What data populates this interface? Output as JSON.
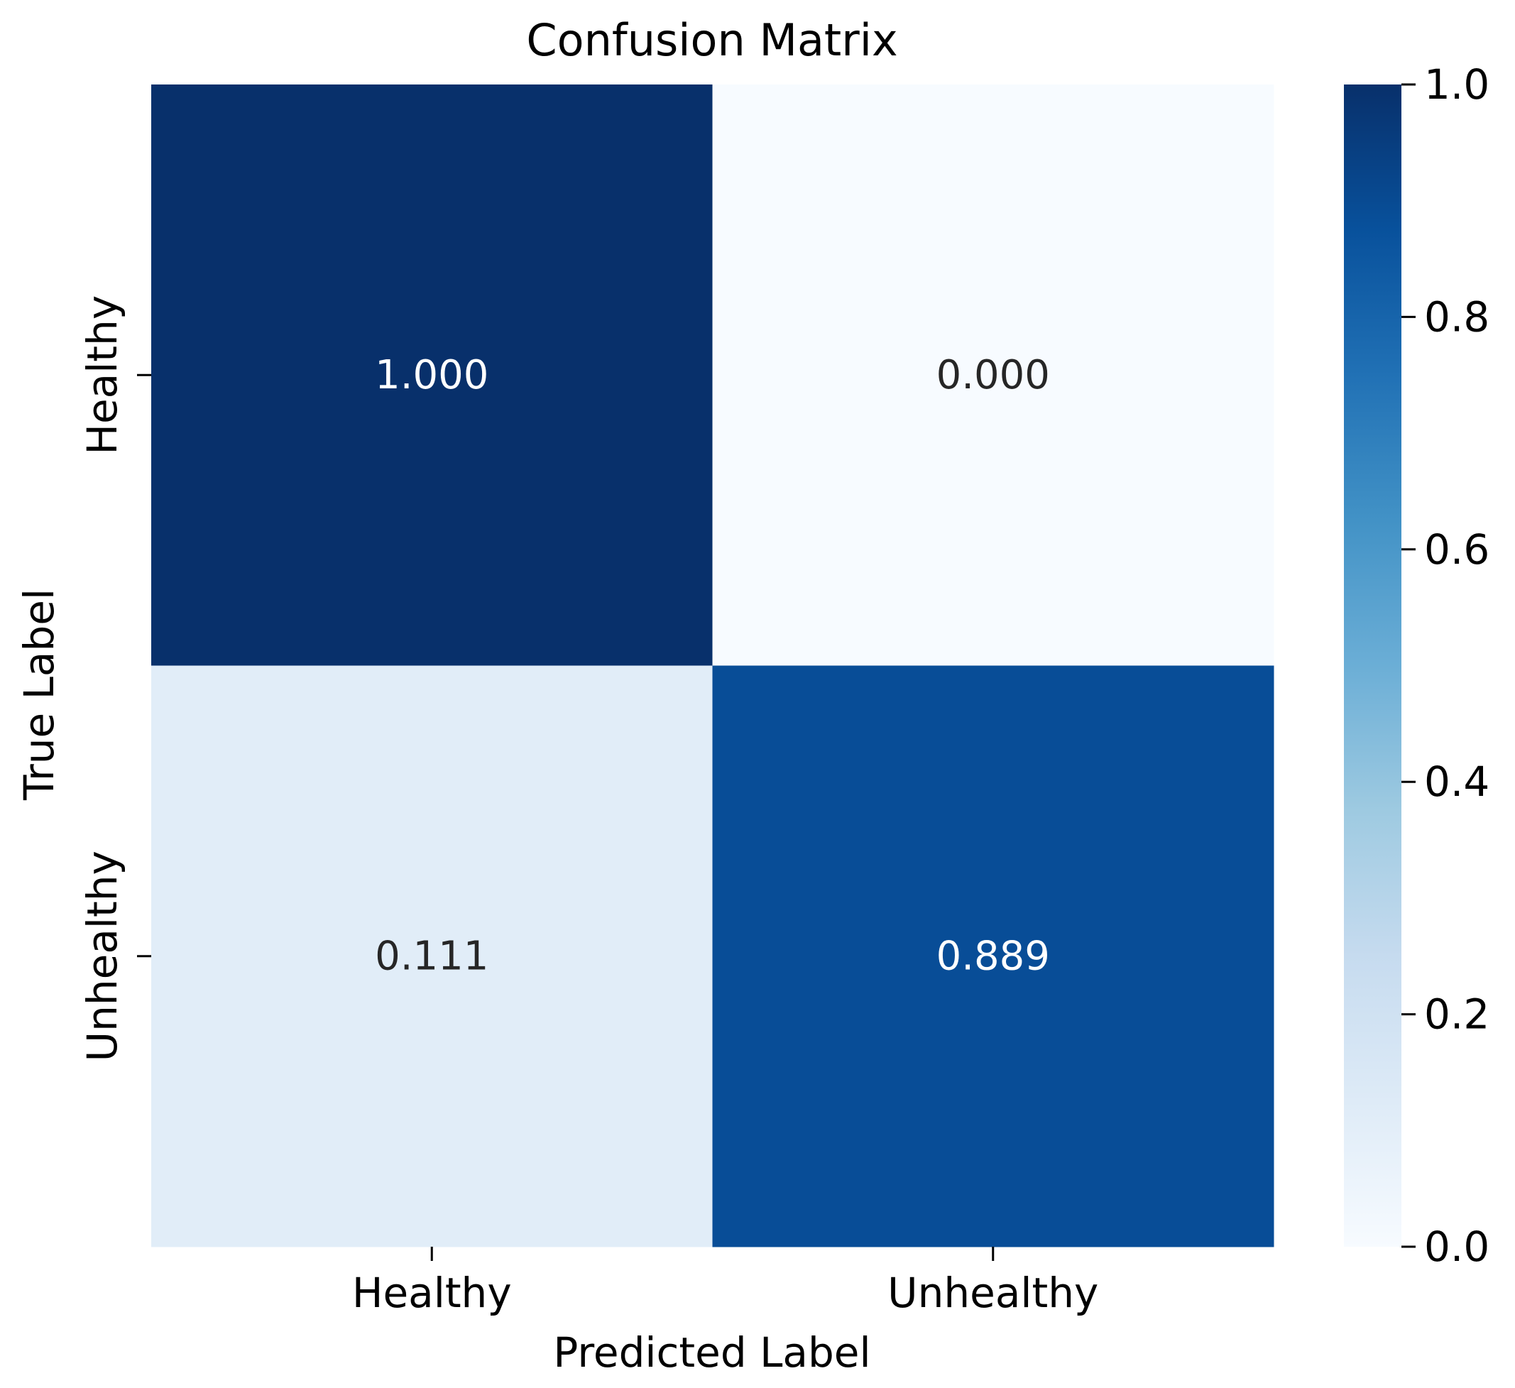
{
  "chart_data": {
    "type": "heatmap",
    "title": "Confusion Matrix",
    "xlabel": "Predicted Label",
    "ylabel": "True Label",
    "x_categories": [
      "Healthy",
      "Unhealthy"
    ],
    "y_categories": [
      "Healthy",
      "Unhealthy"
    ],
    "values": [
      [
        1.0,
        0.0
      ],
      [
        0.111,
        0.889
      ]
    ],
    "cell_labels": [
      [
        "1.000",
        "0.000"
      ],
      [
        "0.111",
        "0.889"
      ]
    ],
    "colormap": "Blues",
    "colorbar": {
      "vmin": 0.0,
      "vmax": 1.0,
      "tick_values": [
        0.0,
        0.2,
        0.4,
        0.6,
        0.8,
        1.0
      ],
      "tick_labels": [
        "0.0",
        "0.2",
        "0.4",
        "0.6",
        "0.8",
        "1.0"
      ]
    },
    "grid": false,
    "legend": "colorbar-right"
  }
}
